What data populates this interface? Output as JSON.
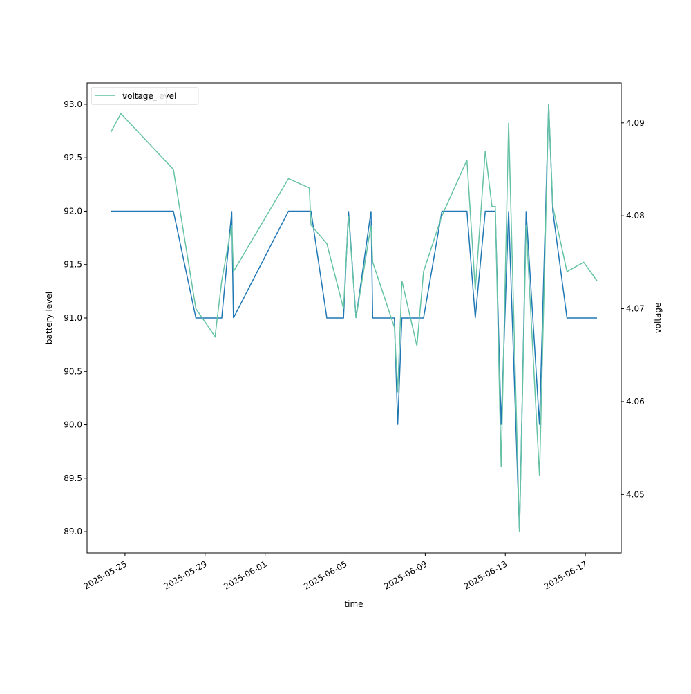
{
  "chart_data": {
    "type": "line",
    "xlabel": "time",
    "ylabel": "battery level",
    "y2label": "voltage",
    "x": [
      "2025-05-24T07:00",
      "2025-05-24T19:00",
      "2025-05-27T10:00",
      "2025-05-28T13:00",
      "2025-05-29T12:00",
      "2025-05-29T20:00",
      "2025-05-30T08:00",
      "2025-05-30T10:00",
      "2025-06-02T04:00",
      "2025-06-03T05:00",
      "2025-06-03T07:00",
      "2025-06-04T02:00",
      "2025-06-04T22:00",
      "2025-06-05T04:00",
      "2025-06-05T13:00",
      "2025-06-06T07:00",
      "2025-06-06T09:00",
      "2025-06-07T11:00",
      "2025-06-07T15:00",
      "2025-06-07T20:00",
      "2025-06-08T14:00",
      "2025-06-08T22:00",
      "2025-06-09T20:00",
      "2025-06-11T02:00",
      "2025-06-11T12:00",
      "2025-06-12T00:00",
      "2025-06-12T08:00",
      "2025-06-12T12:00",
      "2025-06-12T19:00",
      "2025-06-13T04:00",
      "2025-06-13T17:00",
      "2025-06-14T01:00",
      "2025-06-14T17:00",
      "2025-06-15T04:00",
      "2025-06-15T09:00",
      "2025-06-16T02:00",
      "2025-06-16T22:00",
      "2025-06-17T14:00"
    ],
    "series": [
      {
        "name": "battery_level",
        "color": "#1f77b4",
        "axis": "y",
        "values": [
          92,
          92,
          92,
          91,
          91,
          91,
          92,
          91,
          92,
          92,
          92,
          91,
          91,
          92,
          91,
          92,
          91,
          91,
          90,
          91,
          91,
          91,
          92,
          92,
          91,
          92,
          92,
          92,
          90,
          92,
          89,
          92,
          90,
          93,
          92,
          91,
          91,
          91
        ]
      },
      {
        "name": "voltage",
        "color": "#66c2a5",
        "axis": "y2",
        "values": [
          4.089,
          4.091,
          4.085,
          4.07,
          4.067,
          4.073,
          4.079,
          4.074,
          4.084,
          4.083,
          4.079,
          4.077,
          4.07,
          4.08,
          4.069,
          4.079,
          4.075,
          4.068,
          4.061,
          4.073,
          4.066,
          4.074,
          4.08,
          4.086,
          4.072,
          4.087,
          4.081,
          4.081,
          4.053,
          4.09,
          4.046,
          4.079,
          4.052,
          4.092,
          4.081,
          4.074,
          4.075,
          4.073
        ]
      }
    ],
    "xlim": [
      "2025-05-23T02:30",
      "2025-06-18T19:00"
    ],
    "xticks": [
      "2025-05-25",
      "2025-05-29",
      "2025-06-01",
      "2025-06-05",
      "2025-06-09",
      "2025-06-13",
      "2025-06-17"
    ],
    "ylim": [
      88.8,
      93.2
    ],
    "yticks": [
      {
        "value": 89,
        "label": "89.0"
      },
      89.5,
      {
        "value": 90,
        "label": "90.0"
      },
      90.5,
      {
        "value": 91,
        "label": "91.0"
      },
      91.5,
      {
        "value": 92,
        "label": "92.0"
      },
      92.5,
      {
        "value": 93,
        "label": "93.0"
      }
    ],
    "y2lim": [
      4.0437,
      4.0943
    ],
    "y2ticks": [
      4.05,
      4.06,
      4.07,
      4.08,
      4.09
    ],
    "legend": "upper left"
  }
}
